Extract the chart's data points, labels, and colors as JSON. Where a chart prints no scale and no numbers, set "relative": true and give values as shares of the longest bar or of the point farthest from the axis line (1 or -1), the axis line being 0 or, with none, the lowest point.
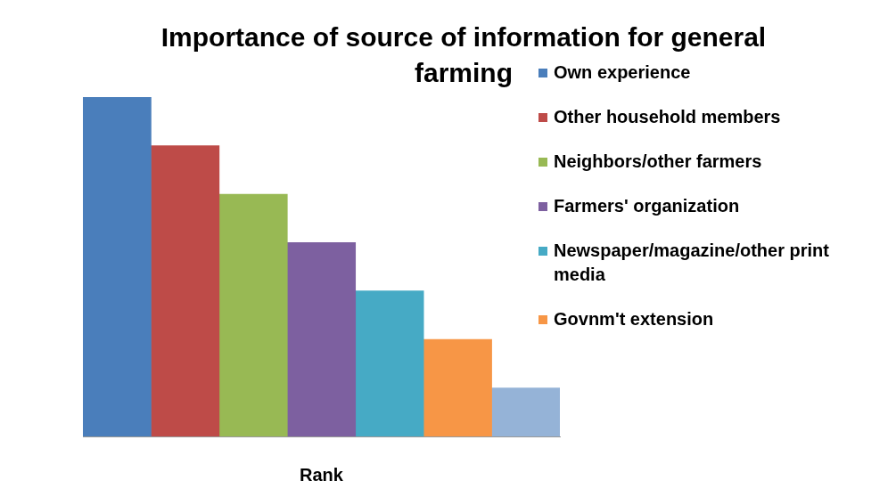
{
  "chart_data": {
    "type": "bar",
    "title": "Importance of source of information for general farming",
    "xlabel": "Rank",
    "categories": [
      null,
      null,
      null,
      null,
      null,
      null,
      null
    ],
    "relative": true,
    "stacked": true,
    "legend": "top right",
    "series": [
      {
        "name": "Own experience",
        "color": "#4a7ebb",
        "values": [
          1,
          null,
          null,
          null,
          null,
          null,
          null
        ]
      },
      {
        "name": "Other household members",
        "color": "#be4b48",
        "values": [
          null,
          0.857,
          null,
          null,
          null,
          null,
          null
        ]
      },
      {
        "name": "Neighbors/other farmers",
        "color": "#98b954",
        "values": [
          null,
          null,
          0.714,
          null,
          null,
          null,
          null
        ]
      },
      {
        "name": "Farmers' organization",
        "color": "#7d60a0",
        "values": [
          null,
          null,
          null,
          0.571,
          null,
          null,
          null
        ]
      },
      {
        "name": "Newspaper/magazine/other print media",
        "color": "#46aac5",
        "values": [
          null,
          null,
          null,
          null,
          0.429,
          null,
          null
        ]
      },
      {
        "name": "Govnm't extension",
        "color": "#f79646",
        "values": [
          null,
          null,
          null,
          null,
          null,
          0.286,
          null
        ]
      },
      {
        "color": "#95b3d7",
        "values": [
          null,
          null,
          null,
          null,
          null,
          null,
          0.143
        ]
      }
    ]
  }
}
